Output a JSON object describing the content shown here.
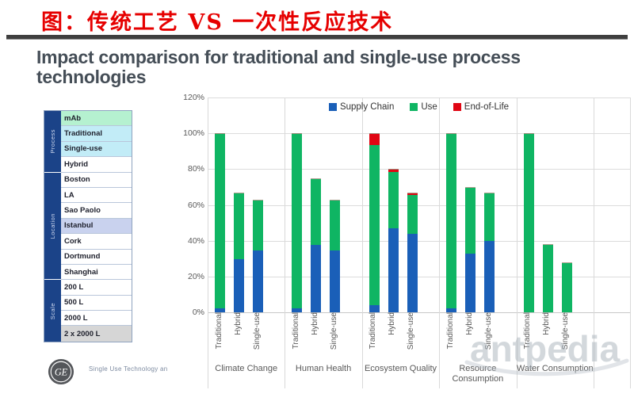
{
  "header": {
    "cn_title": "图：传统工艺 VS 一次性反应技术",
    "en_title_line1": "Impact comparison for traditional and single-use process",
    "en_title_line2": "technologies"
  },
  "sidebar": {
    "sections": [
      {
        "label": "Process",
        "rows": 4
      },
      {
        "label": "Location",
        "rows": 7
      },
      {
        "label": "Scale",
        "rows": 4
      }
    ],
    "rows": [
      {
        "label": "mAb",
        "bg": "#b5f1d0"
      },
      {
        "label": "Traditional",
        "bg": "#c2ecf7"
      },
      {
        "label": "Single-use",
        "bg": "#c2ecf7"
      },
      {
        "label": "Hybrid",
        "bg": "#ffffff"
      },
      {
        "label": "Boston",
        "bg": "#ffffff"
      },
      {
        "label": "LA",
        "bg": "#ffffff"
      },
      {
        "label": "Sao Paolo",
        "bg": "#ffffff"
      },
      {
        "label": "Istanbul",
        "bg": "#c9d2ee"
      },
      {
        "label": "Cork",
        "bg": "#ffffff"
      },
      {
        "label": "Dortmund",
        "bg": "#ffffff"
      },
      {
        "label": "Shanghai",
        "bg": "#ffffff"
      },
      {
        "label": "200 L",
        "bg": "#ffffff"
      },
      {
        "label": "500 L",
        "bg": "#ffffff"
      },
      {
        "label": "2000 L",
        "bg": "#ffffff"
      },
      {
        "label": "2 x 2000 L",
        "bg": "#d6d6d6"
      }
    ]
  },
  "chart_data": {
    "type": "bar",
    "stacked": true,
    "title": "Impact comparison for traditional and single-use process technologies",
    "groups": [
      "Climate Change",
      "Human Health",
      "Ecosystem Quality",
      "Resource Consumption",
      "Water Consumption"
    ],
    "bar_labels": [
      "Traditional",
      "Hybrid",
      "Single-use"
    ],
    "series": [
      {
        "name": "Supply Chain",
        "color": "#1a5fb8",
        "values": [
          [
            2,
            30,
            35
          ],
          [
            2,
            38,
            35
          ],
          [
            4,
            47,
            44
          ],
          [
            2,
            33,
            40
          ],
          [
            0,
            0,
            0
          ]
        ]
      },
      {
        "name": "Use",
        "color": "#0fb563",
        "values": [
          [
            98,
            37,
            28
          ],
          [
            98,
            37,
            28
          ],
          [
            90,
            32,
            22
          ],
          [
            98,
            37,
            27
          ],
          [
            100,
            38,
            28
          ]
        ]
      },
      {
        "name": "End-of-Life",
        "color": "#e00613",
        "values": [
          [
            0,
            0,
            0
          ],
          [
            0,
            0,
            0
          ],
          [
            6,
            1,
            1
          ],
          [
            0,
            0,
            0
          ],
          [
            0,
            0,
            0
          ]
        ]
      }
    ],
    "totals_pct": {
      "Climate Change": [
        100,
        67,
        63
      ],
      "Human Health": [
        100,
        75,
        63
      ],
      "Ecosystem Quality": [
        100,
        80,
        67
      ],
      "Resource Consumption": [
        100,
        70,
        67
      ],
      "Water Consumption": [
        100,
        38,
        28
      ]
    },
    "ylim": [
      0,
      120
    ],
    "yticks": [
      "0%",
      "20%",
      "40%",
      "60%",
      "80%",
      "100%",
      "120%"
    ],
    "grid": true,
    "legend_position": "top-center"
  },
  "footer": {
    "logo": "GE",
    "text": "Single Use Technology an"
  },
  "watermark": "antpedia"
}
